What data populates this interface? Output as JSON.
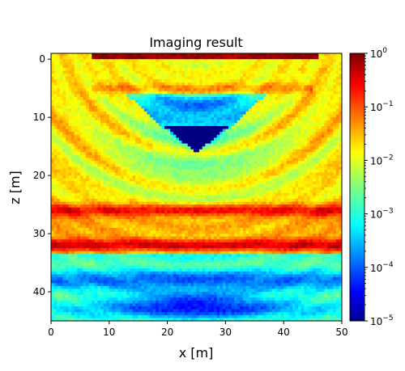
{
  "chart_data": {
    "type": "heatmap",
    "title": "Imaging result",
    "xlabel": "x [m]",
    "ylabel": "z [m]",
    "xlim": [
      0,
      50
    ],
    "ylim": [
      45,
      -1
    ],
    "xticks": [
      0,
      10,
      20,
      30,
      40,
      50
    ],
    "yticks": [
      0,
      10,
      20,
      30,
      40
    ],
    "colormap": "jet",
    "color_scale": "log",
    "color_range": [
      1e-05,
      1
    ],
    "colorbar_ticks": [
      {
        "base": "10",
        "exp": "0"
      },
      {
        "base": "10",
        "exp": "−1"
      },
      {
        "base": "10",
        "exp": "−2"
      },
      {
        "base": "10",
        "exp": "−3"
      },
      {
        "base": "10",
        "exp": "−4"
      },
      {
        "base": "10",
        "exp": "−5"
      }
    ],
    "features": [
      {
        "kind": "band",
        "z": 0,
        "x": [
          7,
          46
        ],
        "value": 0.8
      },
      {
        "kind": "band",
        "z": 5,
        "x": [
          7,
          45
        ],
        "value": 0.05
      },
      {
        "kind": "reflector",
        "z": 26,
        "value": 0.15
      },
      {
        "kind": "reflector",
        "z": 32,
        "value": 0.2
      },
      {
        "kind": "low_zone",
        "z": 42,
        "x": 25,
        "value": 0.0001
      },
      {
        "kind": "low_zone",
        "z": 13,
        "x": 25,
        "value": 5e-05
      }
    ]
  }
}
